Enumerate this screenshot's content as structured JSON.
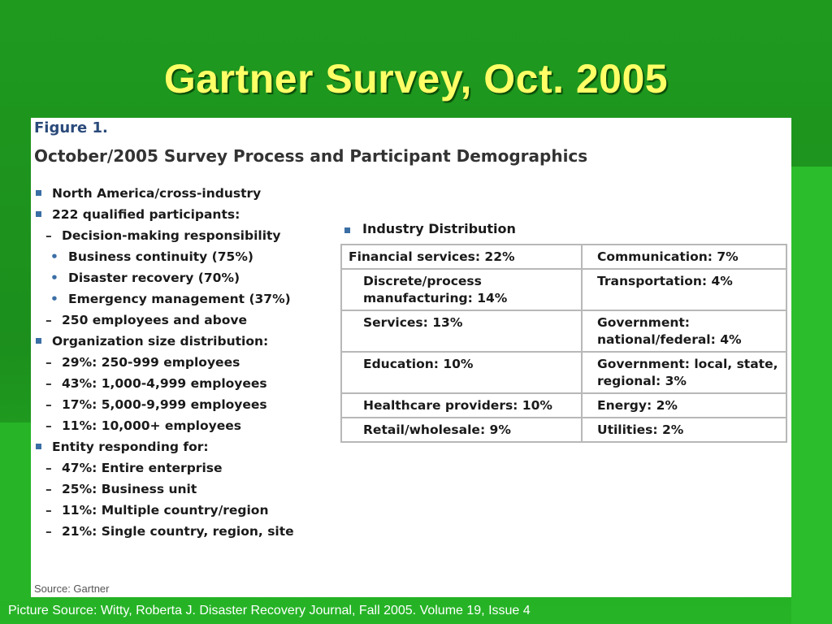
{
  "slide": {
    "title": "Gartner Survey, Oct. 2005",
    "footer": "Picture Source: Witty, Roberta J. Disaster Recovery Journal, Fall 2005.  Volume 19, Issue 4"
  },
  "figure": {
    "label": "Figure 1.",
    "title": "October/2005 Survey Process and Participant Demographics",
    "source": "Source: Gartner",
    "list": [
      {
        "level": 1,
        "text": "North America/cross-industry"
      },
      {
        "level": 1,
        "text": "222 qualified participants:"
      },
      {
        "level": 2,
        "text": "Decision-making responsibility"
      },
      {
        "level": 3,
        "text": "Business continuity (75%)"
      },
      {
        "level": 3,
        "text": "Disaster recovery (70%)"
      },
      {
        "level": 3,
        "text": "Emergency management (37%)"
      },
      {
        "level": 2,
        "text": "250 employees and above"
      },
      {
        "level": 1,
        "text": "Organization size distribution:"
      },
      {
        "level": 2,
        "text": "29%: 250-999 employees"
      },
      {
        "level": 2,
        "text": "43%: 1,000-4,999 employees"
      },
      {
        "level": 2,
        "text": "17%: 5,000-9,999 employees"
      },
      {
        "level": 2,
        "text": "11%: 10,000+ employees"
      },
      {
        "level": 1,
        "text": "Entity responding for:"
      },
      {
        "level": 2,
        "text": "47%: Entire enterprise"
      },
      {
        "level": 2,
        "text": "25%: Business unit"
      },
      {
        "level": 2,
        "text": "11%: Multiple country/region"
      },
      {
        "level": 2,
        "text": "21%: Single country, region, site"
      }
    ],
    "industry": {
      "heading": "Industry Distribution",
      "rows": [
        [
          "Financial services: 22%",
          "Communication: 7%"
        ],
        [
          "Discrete/process manufacturing: 14%",
          "Transportation: 4%"
        ],
        [
          "Services: 13%",
          "Government: national/federal: 4%"
        ],
        [
          "Education: 10%",
          "Government: local, state, regional: 3%"
        ],
        [
          "Healthcare providers: 10%",
          "Energy: 2%"
        ],
        [
          "Retail/wholesale: 9%",
          "Utilities: 2%"
        ]
      ]
    }
  }
}
